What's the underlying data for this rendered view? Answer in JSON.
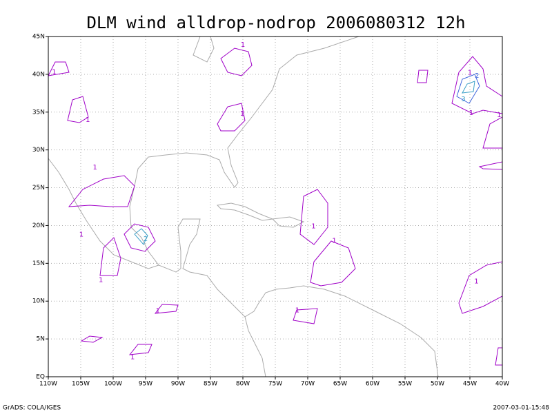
{
  "title": "DLM wind alldrop-nodrop 2006080312 12h",
  "map": {
    "xlim": [
      -110,
      -40
    ],
    "ylim": [
      0,
      45
    ],
    "xticks": [
      {
        "value": -110,
        "label": "110W"
      },
      {
        "value": -105,
        "label": "105W"
      },
      {
        "value": -100,
        "label": "100W"
      },
      {
        "value": -95,
        "label": "95W"
      },
      {
        "value": -90,
        "label": "90W"
      },
      {
        "value": -85,
        "label": "85W"
      },
      {
        "value": -80,
        "label": "80W"
      },
      {
        "value": -75,
        "label": "75W"
      },
      {
        "value": -70,
        "label": "70W"
      },
      {
        "value": -65,
        "label": "65W"
      },
      {
        "value": -60,
        "label": "60W"
      },
      {
        "value": -55,
        "label": "55W"
      },
      {
        "value": -50,
        "label": "50W"
      },
      {
        "value": -45,
        "label": "45W"
      },
      {
        "value": -40,
        "label": "40W"
      }
    ],
    "yticks": [
      {
        "value": 0,
        "label": "EQ"
      },
      {
        "value": 5,
        "label": "5N"
      },
      {
        "value": 10,
        "label": "10N"
      },
      {
        "value": 15,
        "label": "15N"
      },
      {
        "value": 20,
        "label": "20N"
      },
      {
        "value": 25,
        "label": "25N"
      },
      {
        "value": 30,
        "label": "30N"
      },
      {
        "value": 35,
        "label": "35N"
      },
      {
        "value": 40,
        "label": "40N"
      },
      {
        "value": 45,
        "label": "45N"
      }
    ],
    "grid": true,
    "contour_labels": [
      {
        "lon": -46,
        "lat": 36.7,
        "label": "3",
        "color": "#3ca0c8"
      },
      {
        "lon": -43.9,
        "lat": 39.8,
        "label": "2",
        "color": "#3c64dc"
      },
      {
        "lon": -45,
        "lat": 40.2,
        "label": "1",
        "color": "#a000c8"
      },
      {
        "lon": -40.5,
        "lat": 34.6,
        "label": "1",
        "color": "#a000c8"
      },
      {
        "lon": -44.8,
        "lat": 34.9,
        "label": "1",
        "color": "#a000c8"
      },
      {
        "lon": -44,
        "lat": 12.6,
        "label": "1",
        "color": "#a000c8"
      },
      {
        "lon": -95,
        "lat": 18.2,
        "label": "2",
        "color": "#3ca0c8"
      },
      {
        "lon": -80,
        "lat": 43.9,
        "label": "1",
        "color": "#a000c8"
      },
      {
        "lon": -69.1,
        "lat": 19.9,
        "label": "1",
        "color": "#a000c8"
      },
      {
        "lon": -65.9,
        "lat": 18,
        "label": "1",
        "color": "#a000c8"
      },
      {
        "lon": -104.9,
        "lat": 18.8,
        "label": "1",
        "color": "#a000c8"
      },
      {
        "lon": -101.9,
        "lat": 12.8,
        "label": "1",
        "color": "#a000c8"
      },
      {
        "lon": -93.1,
        "lat": 8.7,
        "label": "1",
        "color": "#a000c8"
      },
      {
        "lon": -97,
        "lat": 2.6,
        "label": "1",
        "color": "#a000c8"
      },
      {
        "lon": -102.8,
        "lat": 27.7,
        "label": "1",
        "color": "#a000c8"
      },
      {
        "lon": -103.9,
        "lat": 34,
        "label": "1",
        "color": "#a000c8"
      },
      {
        "lon": -71.6,
        "lat": 8.8,
        "label": "1",
        "color": "#a000c8"
      },
      {
        "lon": -80.1,
        "lat": 34.8,
        "label": "1",
        "color": "#a000c8"
      },
      {
        "lon": -109.1,
        "lat": 40.3,
        "label": "1",
        "color": "#a000c8"
      }
    ]
  },
  "footer": {
    "left": "GrADS: COLA/IGES",
    "right": "2007-03-01-15:48"
  }
}
